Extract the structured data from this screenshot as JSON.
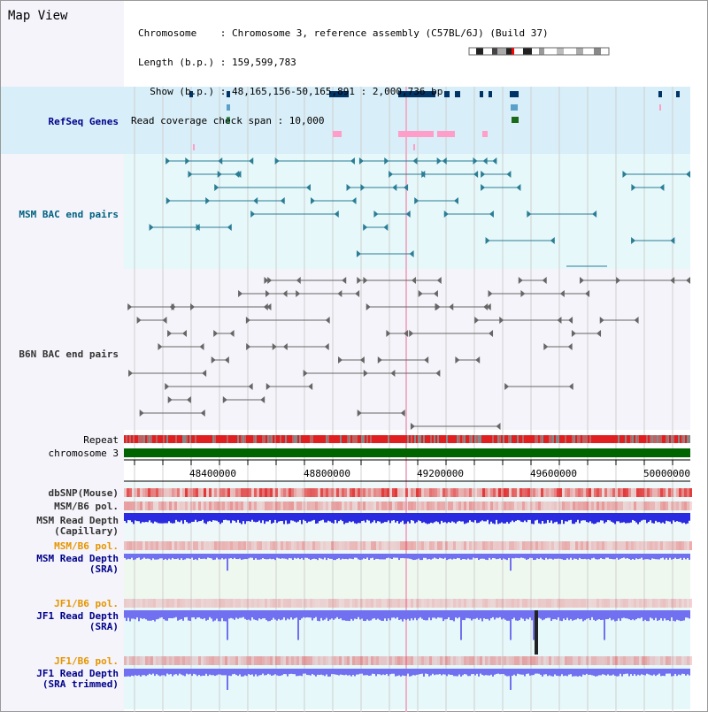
{
  "header": {
    "title": "Map View",
    "chromosome_line": "Chromosome    : Chromosome 3, reference assembly (C57BL/6J) (Build 37)",
    "length_line": "Length (b.p.) : 159,599,783",
    "show_line": "  Show (b.p.) : 48,165,156-50,165,891 : 2,000,736 bp",
    "coverage_line": "Read coverage check span : 10,000"
  },
  "tracks": {
    "refseq": "RefSeq Genes",
    "msm_bac": "MSM BAC end pairs",
    "b6n_bac": "B6N BAC end pairs",
    "repeat": "Repeat",
    "chromosome": "chromosome 3",
    "dbsnp": "dbSNP(Mouse)",
    "msm_b6_pol_1": "MSM/B6 pol.",
    "msm_depth_cap_1": "MSM Read Depth",
    "msm_depth_cap_2": "(Capillary)",
    "msm_b6_pol_2": "MSM/B6 pol.",
    "msm_depth_sra_1": "MSM Read Depth",
    "msm_depth_sra_2": "(SRA)",
    "jf1_b6_pol_1": "JF1/B6 pol.",
    "jf1_depth_sra_1": "JF1 Read Depth",
    "jf1_depth_sra_2": "(SRA)",
    "jf1_b6_pol_2": "JF1/B6 pol.",
    "jf1_depth_trim_1": "JF1 Read Depth",
    "jf1_depth_trim_2": "(SRA trimmed)"
  },
  "axis": {
    "ticks": [
      "48400000",
      "48800000",
      "49200000",
      "49600000",
      "50000000"
    ]
  },
  "colors": {
    "refseq_label": "#00008b",
    "msm_label": "#006080",
    "b6n_label": "#333333",
    "pol_orange": "#e69500",
    "depth_blue": "#0000cc",
    "chromosome_green": "#006400",
    "gene_dark": "#003366",
    "gene_teal": "#2e7d8c",
    "snp_red": "#e03030"
  }
}
